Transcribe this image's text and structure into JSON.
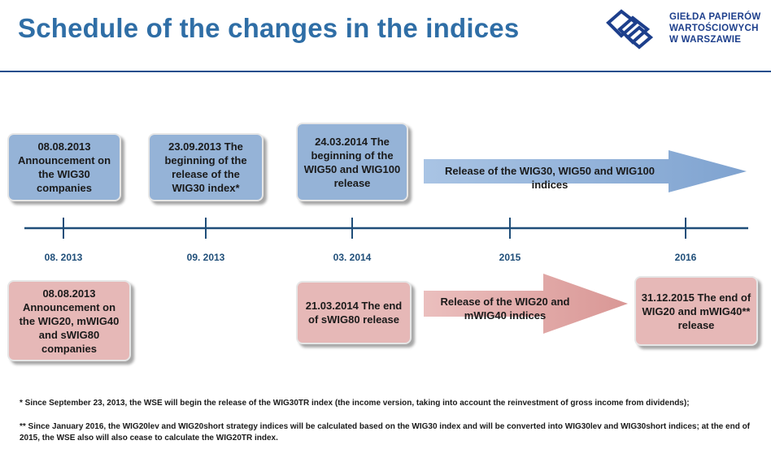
{
  "header": {
    "title": "Schedule of the changes in the indices",
    "logo_lines": [
      "GIEŁDA PAPIERÓW",
      "WARTOŚCIOWYCH",
      "W WARSZAWIE"
    ],
    "accent_color": "#2f6ea6"
  },
  "timeline": {
    "ticks": [
      "08. 2013",
      "09. 2013",
      "03. 2014",
      "2015",
      "2016"
    ]
  },
  "top_boxes": [
    "08.08.2013 Announcement on the WIG30 companies",
    "23.09.2013 The beginning of the release of the WIG30 index*",
    "24.03.2014 The beginning of the WIG50 and WIG100 release"
  ],
  "top_arrow": "Release of the WIG30, WIG50 and WIG100 indices",
  "bottom_boxes": [
    "08.08.2013 Announcement on the WIG20, mWIG40 and sWIG80 companies",
    "21.03.2014 The end of sWIG80 release",
    "31.12.2015 The end of WIG20 and mWIG40** release"
  ],
  "bottom_arrow": "Release of the WIG20 and mWIG40 indices",
  "colors": {
    "blue_box": "#95b3d7",
    "pink_box": "#e6b8b7",
    "axis": "#1f4e79"
  },
  "footnotes": [
    "* Since September 23, 2013, the WSE will begin the release of the WIG30TR index (the income version, taking into account the reinvestment of gross income from dividends);",
    "** Since January 2016, the WIG20lev and WIG20short strategy indices will be calculated based on the WIG30 index and will be converted into WIG30lev and WIG30short indices; at the end of 2015, the WSE also will also cease to calculate the WIG20TR index."
  ]
}
